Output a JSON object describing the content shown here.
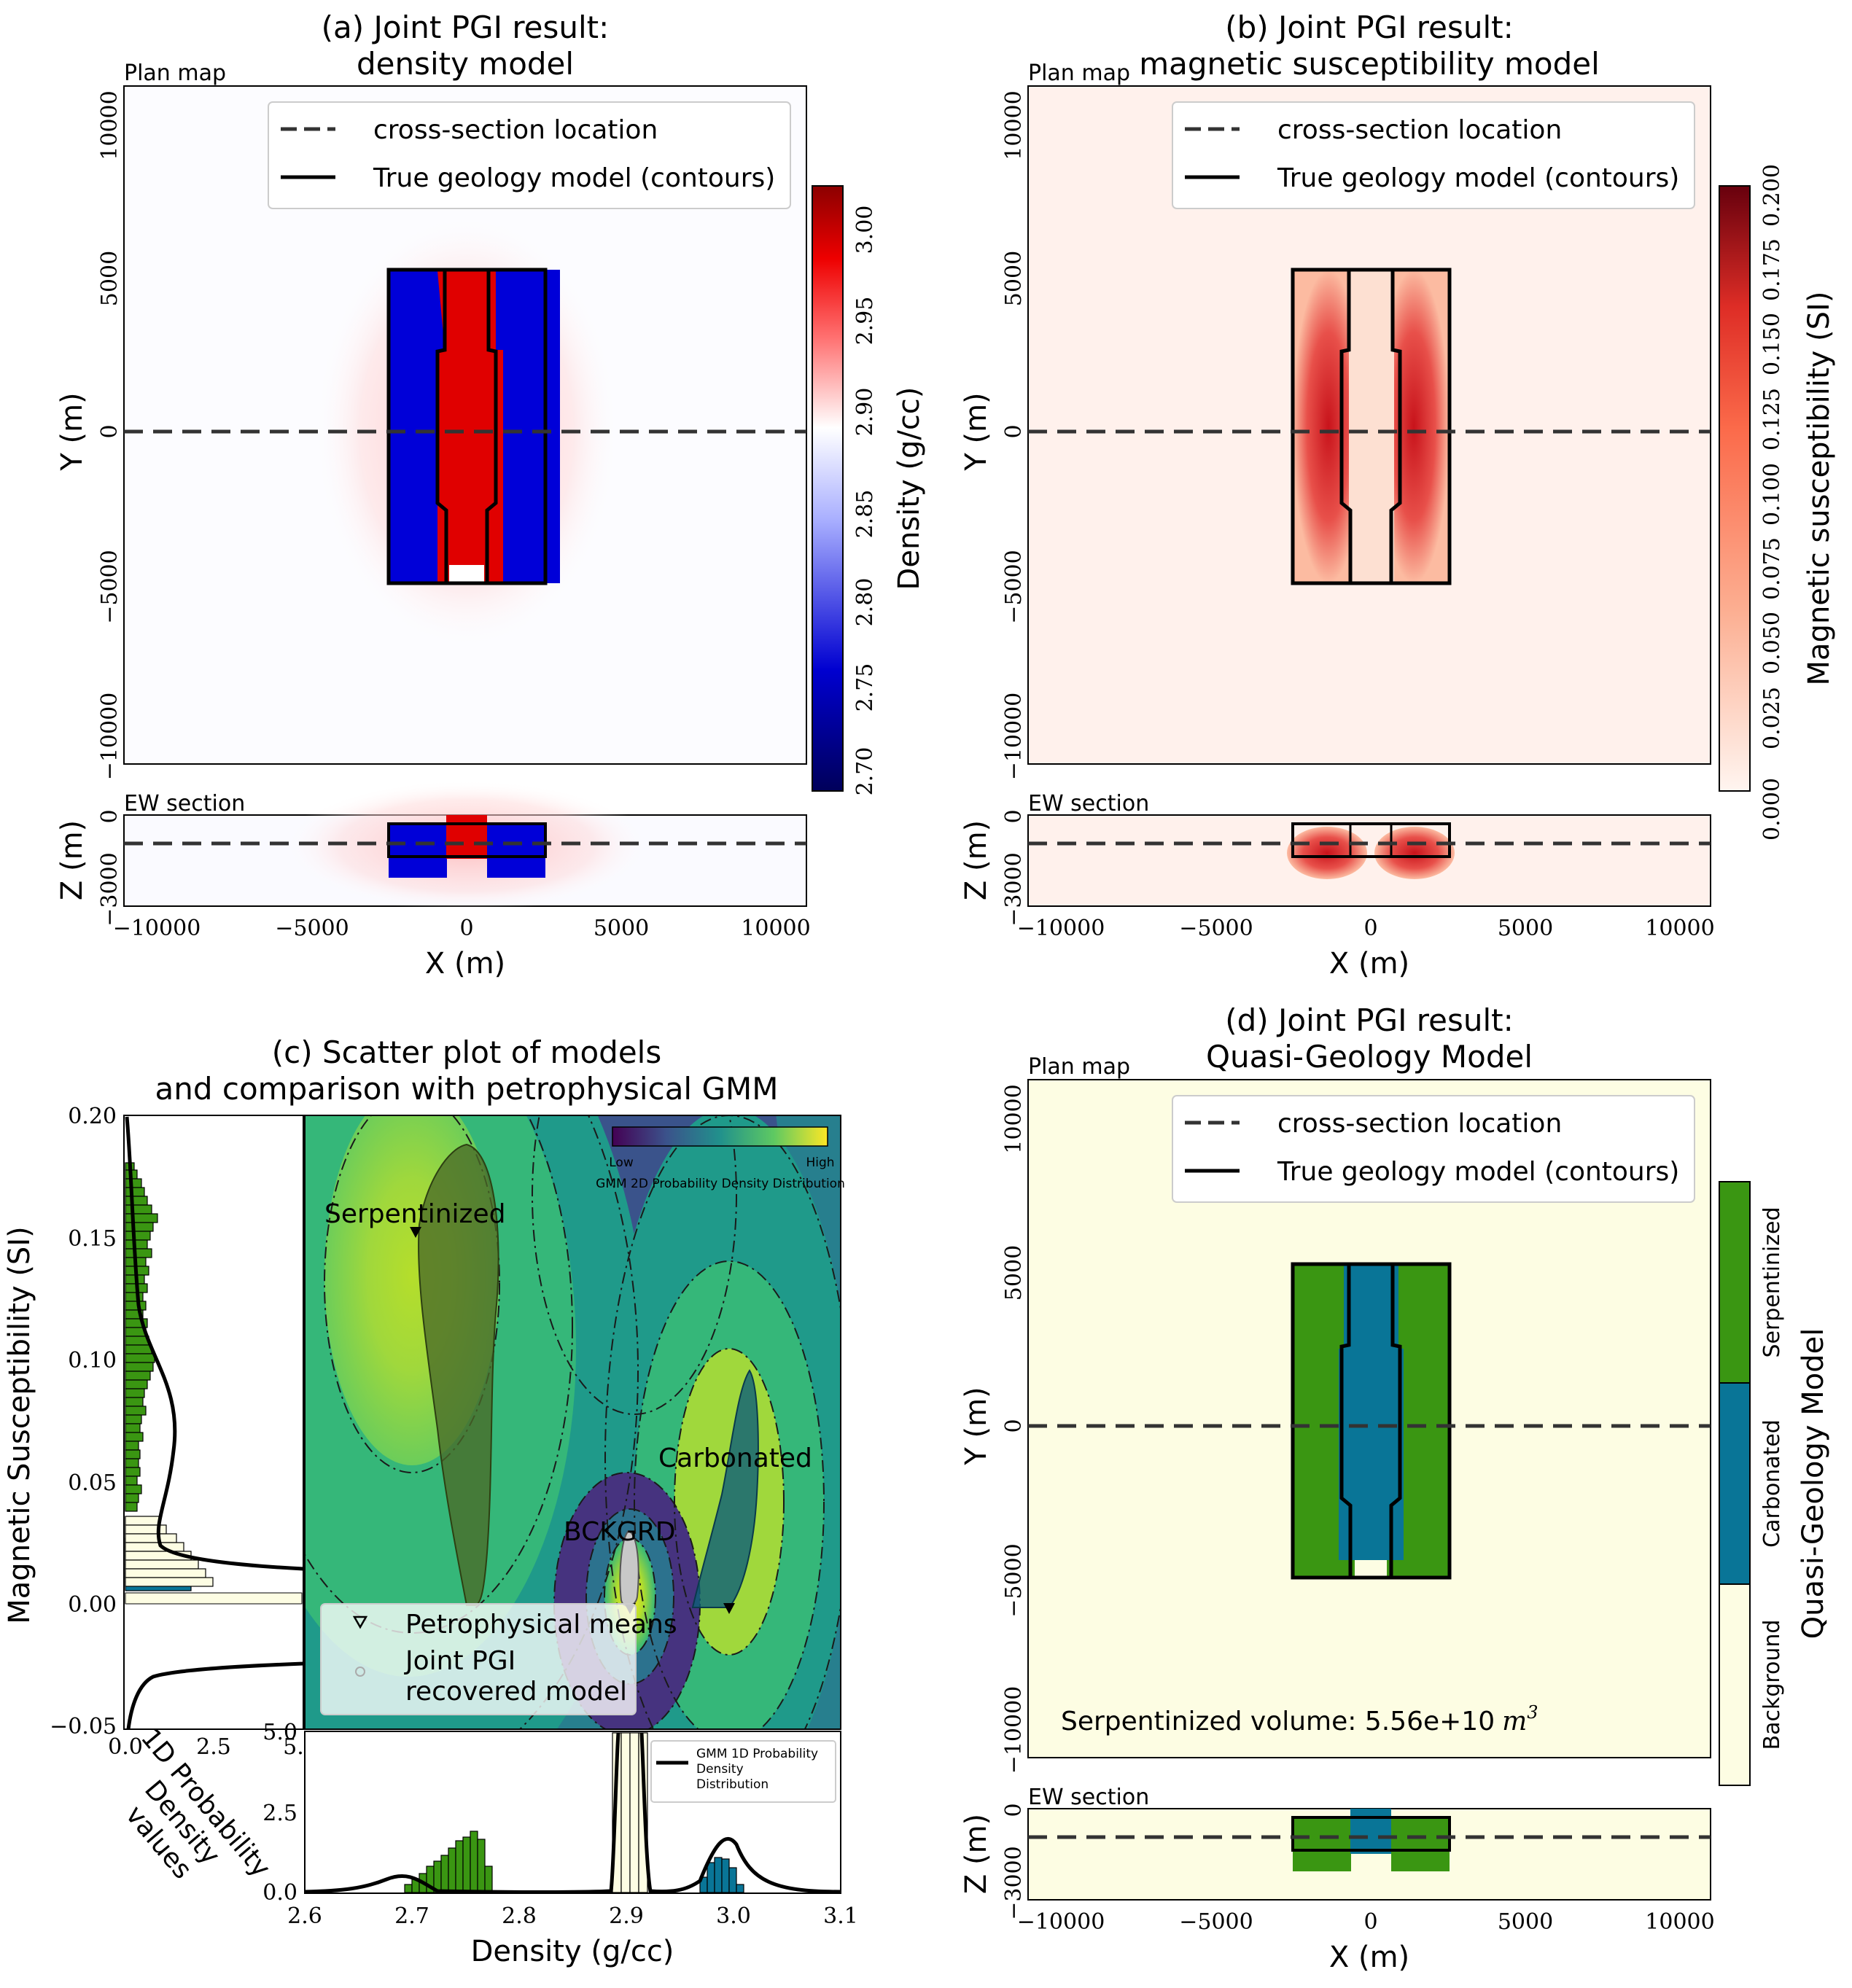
{
  "colors": {
    "density_low": "#00005a",
    "density_mid": "#ffffff",
    "density_high": "#8b0000",
    "sus_low": "#fff5f0",
    "sus_high": "#67000d",
    "background_unit": "#fdfde3",
    "carbonated_unit": "#097597",
    "serpentinized_unit": "#3a9612",
    "serpentinized_points": "#4a6a28",
    "carbonated_points": "#0e5f78",
    "background_points": "#c8c8c8"
  },
  "panel_a": {
    "title_line1": "(a) Joint PGI result:",
    "title_line2": "density model",
    "plan_label": "Plan map",
    "section_label": "EW section",
    "legend": [
      "cross-section location",
      "True geology model (contours)"
    ],
    "ylabel": "Y (m)",
    "zlabel": "Z (m)",
    "xlabel": "X (m)",
    "y_ticks": [
      "10000",
      "5000",
      "0",
      "−5000",
      "−10000"
    ],
    "z_ticks": [
      "0",
      "−3000"
    ],
    "x_ticks": [
      "−10000",
      "−5000",
      "0",
      "5000",
      "10000"
    ],
    "colorbar_label": "Density (g/cc)",
    "colorbar_ticks": [
      "2.70",
      "2.75",
      "2.80",
      "2.85",
      "2.90",
      "2.95",
      "3.00"
    ]
  },
  "panel_b": {
    "title_line1": "(b) Joint PGI result:",
    "title_line2": "magnetic susceptibility model",
    "plan_label": "Plan map",
    "section_label": "EW section",
    "legend": [
      "cross-section location",
      "True geology model (contours)"
    ],
    "ylabel": "Y (m)",
    "zlabel": "Z (m)",
    "xlabel": "X (m)",
    "y_ticks": [
      "10000",
      "5000",
      "0",
      "−5000",
      "−10000"
    ],
    "z_ticks": [
      "0",
      "−3000"
    ],
    "x_ticks": [
      "−10000",
      "−5000",
      "0",
      "5000",
      "10000"
    ],
    "colorbar_label": "Magnetic susceptibility (SI)",
    "colorbar_ticks": [
      "0.000",
      "0.025",
      "0.050",
      "0.075",
      "0.100",
      "0.125",
      "0.150",
      "0.175",
      "0.200"
    ]
  },
  "panel_c": {
    "title_line1": "(c) Scatter plot of models",
    "title_line2": "and comparison with petrophysical GMM",
    "ylabel": "Magnetic Susceptibility (SI)",
    "xlabel": "Density (g/cc)",
    "y_ticks": [
      "0.20",
      "0.15",
      "0.10",
      "0.05",
      "0.00",
      "−0.05"
    ],
    "x_ticks": [
      "2.6",
      "2.7",
      "2.8",
      "2.9",
      "3.0",
      "3.1"
    ],
    "hist_x_ticks": [
      "0.0",
      "2.5",
      "5.0"
    ],
    "hist_x_label": "1D Probability Density values",
    "hist_x_label_lines": [
      "1D Probability",
      "Density",
      "values"
    ],
    "bottom_y_ticks": [
      "0.0",
      "2.5",
      "5.0"
    ],
    "unit_labels": [
      "Serpentinized",
      "Carbonated",
      "BCKGRD"
    ],
    "legend": [
      "Petrophysical means",
      "Joint PGI",
      "recovered model"
    ],
    "colorbar_low": "Low",
    "colorbar_high": "High",
    "colorbar_title": "GMM 2D Probability Density Distribution",
    "gmm1d_legend": "GMM 1D Probability Density Distribution",
    "gmm1d_legend_lines": [
      "GMM 1D Probability",
      "Density",
      "Distribution"
    ]
  },
  "panel_d": {
    "title_line1": "(d) Joint PGI result:",
    "title_line2": "Quasi-Geology Model",
    "plan_label": "Plan map",
    "section_label": "EW section",
    "legend": [
      "cross-section location",
      "True geology model (contours)"
    ],
    "ylabel": "Y (m)",
    "zlabel": "Z (m)",
    "xlabel": "X (m)",
    "y_ticks": [
      "10000",
      "5000",
      "0",
      "−5000",
      "−10000"
    ],
    "z_ticks": [
      "0",
      "−3000"
    ],
    "x_ticks": [
      "−10000",
      "−5000",
      "0",
      "5000",
      "10000"
    ],
    "volume_text": "Serpentinized volume: 5.56e+10",
    "volume_unit": "m",
    "volume_exp": "3",
    "colorbar_label": "Quasi-Geology Model",
    "colorbar_classes": [
      "Background",
      "Carbonated",
      "Serpentinized"
    ]
  },
  "chart_data": [
    {
      "type": "heatmap",
      "panel": "a",
      "quantity": "density (g/cc)",
      "xlim": [
        -11000,
        11000
      ],
      "ylim": [
        -11000,
        11000
      ],
      "zlim": [
        -3000,
        0
      ],
      "colorbar_range": [
        2.69,
        3.02
      ],
      "units": [
        {
          "name": "west block",
          "x": [
            -2500,
            -600
          ],
          "y": [
            -5000,
            5000
          ],
          "value": 2.72
        },
        {
          "name": "east block",
          "x": [
            600,
            2500
          ],
          "y": [
            -5000,
            5000
          ],
          "value": 2.72
        },
        {
          "name": "central body",
          "x": [
            -900,
            900
          ],
          "y": [
            -4600,
            4800
          ],
          "value": 3.0
        }
      ],
      "cross_section_y": 0,
      "cross_section_z": -900
    },
    {
      "type": "heatmap",
      "panel": "b",
      "quantity": "magnetic susceptibility (SI)",
      "xlim": [
        -11000,
        11000
      ],
      "ylim": [
        -11000,
        11000
      ],
      "zlim": [
        -3000,
        0
      ],
      "colorbar_range": [
        0.0,
        0.205
      ],
      "units": [
        {
          "name": "west block",
          "x": [
            -2500,
            -600
          ],
          "y": [
            -5000,
            5000
          ],
          "value": 0.17
        },
        {
          "name": "east block",
          "x": [
            600,
            2500
          ],
          "y": [
            -5000,
            5000
          ],
          "value": 0.17
        },
        {
          "name": "central body",
          "x": [
            -900,
            900
          ],
          "y": [
            -4600,
            4800
          ],
          "value": 0.02
        }
      ],
      "cross_section_y": 0,
      "cross_section_z": -900
    },
    {
      "type": "scatter",
      "panel": "c",
      "xlim": [
        2.6,
        3.1
      ],
      "ylim": [
        -0.05,
        0.2
      ],
      "petrophysical_means": [
        {
          "unit": "Serpentinized",
          "density": 2.7,
          "susceptibility": 0.15
        },
        {
          "unit": "Carbonated",
          "density": 3.0,
          "susceptibility": 0.0
        },
        {
          "unit": "BCKGRD",
          "density": 2.9,
          "susceptibility": 0.0
        }
      ],
      "clusters": [
        {
          "unit": "Serpentinized",
          "density_range": [
            2.7,
            2.77
          ],
          "susceptibility_range": [
            0.0,
            0.19
          ]
        },
        {
          "unit": "Carbonated",
          "density_range": [
            2.96,
            3.02
          ],
          "susceptibility_range": [
            0.0,
            0.095
          ]
        },
        {
          "unit": "BCKGRD",
          "density_range": [
            2.89,
            2.91
          ],
          "susceptibility_range": [
            0.0,
            0.04
          ]
        }
      ],
      "density_hist_ylim": [
        0,
        5
      ],
      "susceptibility_hist_xlim": [
        0,
        5
      ]
    },
    {
      "type": "heatmap",
      "panel": "d",
      "quantity": "quasi-geology class",
      "xlim": [
        -11000,
        11000
      ],
      "ylim": [
        -11000,
        11000
      ],
      "zlim": [
        -3000,
        0
      ],
      "units": [
        {
          "name": "Serpentinized",
          "x": [
            -2500,
            -600
          ],
          "y": [
            -5000,
            5000
          ]
        },
        {
          "name": "Serpentinized",
          "x": [
            600,
            2500
          ],
          "y": [
            -5000,
            5000
          ]
        },
        {
          "name": "Carbonated",
          "x": [
            -900,
            900
          ],
          "y": [
            -4400,
            5000
          ]
        }
      ],
      "cross_section_y": 0,
      "cross_section_z": -900
    }
  ]
}
